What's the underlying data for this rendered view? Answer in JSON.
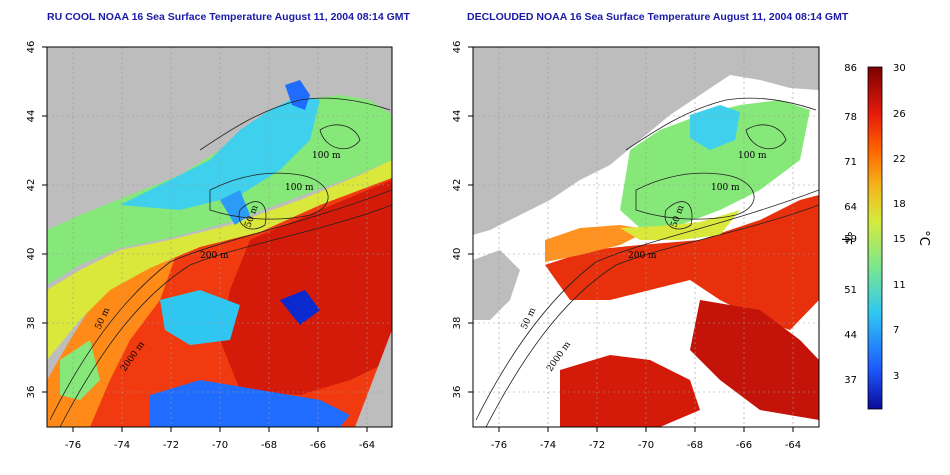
{
  "panels": [
    {
      "id": "left",
      "title": "RU COOL NOAA 16 Sea Surface Temperature August 11, 2004 08:14 GMT",
      "clouds": "cloud pixels remain, warm/cold false colors"
    },
    {
      "id": "right",
      "title": "DECLOUDED NOAA 16 Sea Surface Temperature August 11, 2004 08:14 GMT",
      "clouds": "cloud pixels masked to white"
    }
  ],
  "axes": {
    "lon_ticks": [
      "-76",
      "-74",
      "-72",
      "-70",
      "-68",
      "-66",
      "-64"
    ],
    "lat_ticks": [
      "46",
      "44",
      "42",
      "40",
      "38",
      "36"
    ]
  },
  "contour_labels": [
    "100 m",
    "100 m",
    "50 m",
    "200 m",
    "50 m",
    "2000 m"
  ],
  "colorbar": {
    "fahrenheit_ticks": [
      "86",
      "78",
      "71",
      "64",
      "59",
      "51",
      "44",
      "37"
    ],
    "celsius_ticks": [
      "30",
      "26",
      "22",
      "18",
      "15",
      "11",
      "7",
      "3"
    ],
    "unit_f": "°F",
    "unit_c": "°C",
    "colors": [
      "#0a0a9a",
      "#1e5bff",
      "#2fc7f2",
      "#7ee88a",
      "#d6ea3c",
      "#f2b71c",
      "#ff6a00",
      "#e81c0c",
      "#7a0000"
    ]
  },
  "colors": {
    "land": "#bdbdbd",
    "masked": "#ffffff",
    "title": "#1a1aa8"
  }
}
